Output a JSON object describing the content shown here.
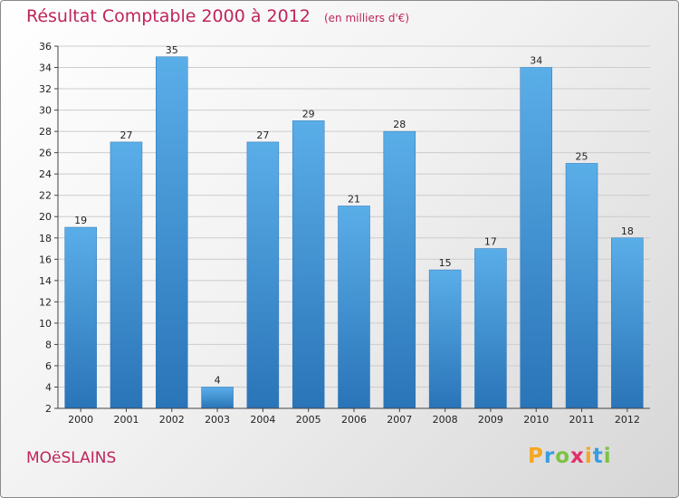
{
  "title": "Résultat Comptable 2000 à 2012",
  "unit": "(en milliers d'€)",
  "commune": "MOëSLAINS",
  "logo": {
    "text": "Proxiti",
    "chars": [
      "P",
      "r",
      "o",
      "x",
      "i",
      "t",
      "i"
    ]
  },
  "colors": {
    "bar": "#3b8fd6",
    "bar_light": "#5aaee8",
    "bar_dark": "#2a74b8",
    "title": "#c0245c",
    "grid": "#cccccc"
  },
  "chart_data": {
    "type": "bar",
    "categories": [
      "2000",
      "2001",
      "2002",
      "2003",
      "2004",
      "2005",
      "2006",
      "2007",
      "2008",
      "2009",
      "2010",
      "2011",
      "2012"
    ],
    "values": [
      19,
      27,
      35,
      4,
      27,
      29,
      21,
      28,
      15,
      17,
      34,
      25,
      18
    ],
    "title": "Résultat Comptable 2000 à 2012",
    "xlabel": "",
    "ylabel": "",
    "ylim": [
      2,
      36
    ],
    "yticks": [
      2,
      4,
      6,
      8,
      10,
      12,
      14,
      16,
      18,
      20,
      22,
      24,
      26,
      28,
      30,
      32,
      34,
      36
    ],
    "grid": true
  }
}
